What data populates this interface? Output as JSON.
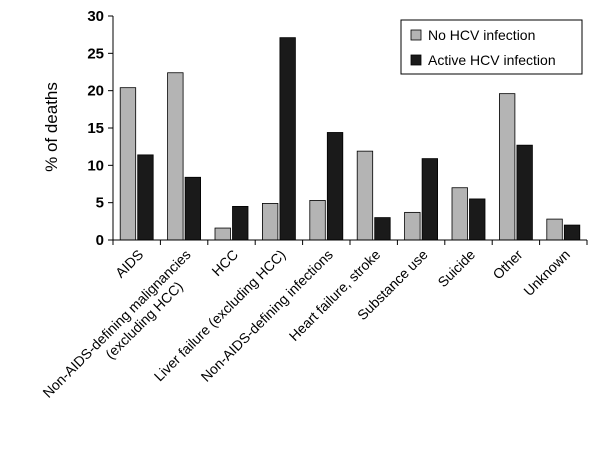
{
  "chart_data": {
    "type": "bar",
    "ylabel": "% of deaths",
    "ylim": [
      0,
      30
    ],
    "yticks": [
      "0",
      "5",
      "10",
      "15",
      "20",
      "25",
      "30"
    ],
    "grid": false,
    "legend_position": "top-right",
    "categories": [
      "AIDS",
      "Non-AIDS-defining malignancies\n(excluding HCC)",
      "HCC",
      "Liver failure (excluding HCC)",
      "Non-AIDS-defining infections",
      "Heart failure, stroke",
      "Substance use",
      "Suicide",
      "Other",
      "Unknown"
    ],
    "series": [
      {
        "name": "No HCV infection",
        "color": "#b4b4b4",
        "values": [
          20.4,
          22.4,
          1.6,
          4.9,
          5.3,
          11.9,
          3.7,
          7.0,
          19.6,
          2.8
        ]
      },
      {
        "name": "Active HCV infection",
        "color": "#1a1a1a",
        "values": [
          11.4,
          8.4,
          4.5,
          27.1,
          14.4,
          3.0,
          10.9,
          5.5,
          12.7,
          2.0
        ]
      }
    ]
  }
}
